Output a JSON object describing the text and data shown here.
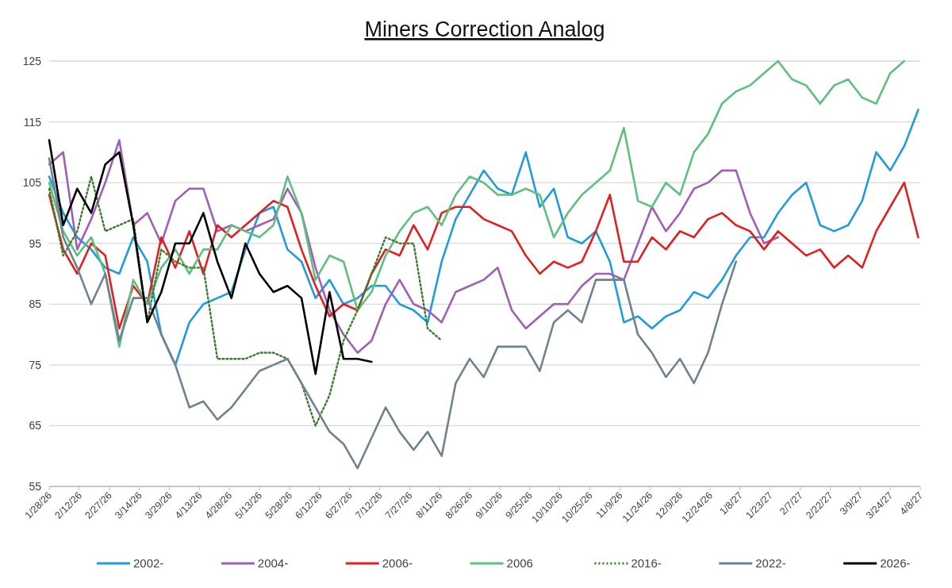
{
  "chart_data": {
    "type": "line",
    "title": "Miners Correction Analog",
    "x": [
      "2026-01-28",
      "2026-02-04",
      "2026-02-11",
      "2026-02-18",
      "2026-02-25",
      "2026-03-04",
      "2026-03-11",
      "2026-03-18",
      "2026-03-25",
      "2026-04-01",
      "2026-04-08",
      "2026-04-15",
      "2026-04-22",
      "2026-04-29",
      "2026-05-06",
      "2026-05-13",
      "2026-05-20",
      "2026-05-27",
      "2026-06-03",
      "2026-06-10",
      "2026-06-17",
      "2026-06-24",
      "2026-07-01",
      "2026-07-08",
      "2026-07-15",
      "2026-07-22",
      "2026-07-29",
      "2026-08-05",
      "2026-08-12",
      "2026-08-19",
      "2026-08-26",
      "2026-09-02",
      "2026-09-09",
      "2026-09-16",
      "2026-09-23",
      "2026-09-30",
      "2026-10-07",
      "2026-10-14",
      "2026-10-21",
      "2026-10-28",
      "2026-11-04",
      "2026-11-11",
      "2026-11-18",
      "2026-11-25",
      "2026-12-02",
      "2026-12-09",
      "2026-12-16",
      "2026-12-23",
      "2026-12-30",
      "2027-01-06",
      "2027-01-13",
      "2027-01-20",
      "2027-01-27",
      "2027-02-03",
      "2027-02-10",
      "2027-02-17",
      "2027-02-24",
      "2027-03-03",
      "2027-03-10",
      "2027-03-17",
      "2027-03-24",
      "2027-03-31",
      "2027-04-07"
    ],
    "series": [
      {
        "name": "2002-",
        "color": "#1f9bde",
        "values": [
          106,
          100,
          96,
          94,
          91,
          90,
          96,
          92,
          80,
          75,
          82,
          85,
          86,
          87,
          94,
          100,
          101,
          94,
          92,
          86,
          89,
          85,
          86,
          88,
          88,
          85,
          84,
          82,
          92,
          99,
          103,
          107,
          104,
          103,
          110,
          101,
          104,
          96,
          95,
          97,
          92,
          82,
          83,
          81,
          83,
          84,
          87,
          86,
          89,
          93,
          96,
          96,
          100,
          103,
          105,
          98,
          97,
          98,
          102,
          110,
          107,
          111,
          117
        ]
      },
      {
        "name": "2004-",
        "color": "#a05fb5",
        "values": [
          108,
          110,
          94,
          99,
          105,
          112,
          98,
          100,
          95,
          102,
          104,
          104,
          97,
          98,
          97,
          98,
          99,
          104,
          100,
          91,
          84,
          80,
          77,
          79,
          85,
          89,
          85,
          84,
          82,
          87,
          88,
          89,
          91,
          84,
          81,
          83,
          85,
          85,
          88,
          90,
          90,
          89,
          95,
          101,
          97,
          100,
          104,
          105,
          107,
          107,
          100,
          95,
          96,
          null,
          null,
          null,
          null,
          null,
          null,
          null,
          null,
          null,
          null
        ]
      },
      {
        "name": "2006-",
        "color": "#e02020",
        "values": [
          103,
          94,
          90,
          95,
          93,
          81,
          88,
          85,
          96,
          91,
          97,
          90,
          98,
          96,
          98,
          100,
          102,
          101,
          94,
          88,
          83,
          85,
          84,
          90,
          94,
          93,
          98,
          94,
          100,
          101,
          101,
          99,
          98,
          97,
          93,
          90,
          92,
          91,
          92,
          97,
          103,
          92,
          92,
          96,
          94,
          97,
          96,
          99,
          100,
          98,
          97,
          94,
          97,
          95,
          93,
          94,
          91,
          93,
          91,
          97,
          101,
          105,
          96
        ]
      },
      {
        "name": "2006",
        "color": "#5fbf7f",
        "values": [
          105,
          97,
          93,
          96,
          90,
          78,
          89,
          85,
          91,
          94,
          90,
          94,
          94,
          98,
          97,
          96,
          98,
          106,
          100,
          89,
          93,
          92,
          84,
          87,
          93,
          97,
          100,
          101,
          98,
          103,
          106,
          105,
          103,
          103,
          104,
          103,
          96,
          100,
          103,
          105,
          107,
          114,
          102,
          101,
          105,
          103,
          110,
          113,
          118,
          120,
          121,
          123,
          125,
          122,
          121,
          118,
          121,
          122,
          119,
          118,
          123,
          125,
          null
        ]
      },
      {
        "name": "2016-",
        "color": "#3a7d2c",
        "line_style": "dotted",
        "values": [
          104,
          93,
          97,
          106,
          97,
          98,
          99,
          82,
          94,
          92,
          91,
          91,
          76,
          76,
          76,
          77,
          77,
          76,
          72,
          65,
          70,
          79,
          84,
          90,
          96,
          95,
          95,
          81,
          79,
          null,
          null,
          null,
          null,
          null,
          null,
          null,
          null,
          null,
          null,
          null,
          null,
          null,
          null,
          null,
          null,
          null,
          null,
          null,
          null,
          null,
          null,
          null,
          null,
          null,
          null,
          null,
          null,
          null,
          null,
          null,
          null,
          null,
          null
        ]
      },
      {
        "name": "2022-",
        "color": "#6e8290",
        "values": [
          109,
          96,
          91,
          85,
          90,
          79,
          86,
          86,
          80,
          75,
          68,
          69,
          66,
          68,
          71,
          74,
          75,
          76,
          72,
          68,
          64,
          62,
          58,
          63,
          68,
          64,
          61,
          64,
          60,
          72,
          76,
          73,
          78,
          78,
          78,
          74,
          82,
          84,
          82,
          89,
          89,
          89,
          80,
          77,
          73,
          76,
          72,
          77,
          85,
          92,
          null,
          null,
          null,
          null,
          null,
          null,
          null,
          null,
          null,
          null,
          null,
          null,
          null
        ]
      },
      {
        "name": "2026-",
        "color": "#000000",
        "values": [
          112,
          98,
          104,
          100,
          108,
          110,
          98,
          82,
          87,
          95,
          95,
          100,
          92,
          86,
          95,
          90,
          87,
          88,
          86,
          73.5,
          87,
          76,
          76,
          75.5,
          null,
          null,
          null,
          null,
          null,
          null,
          null,
          null,
          null,
          null,
          null,
          null,
          null,
          null,
          null,
          null,
          null,
          null,
          null,
          null,
          null,
          null,
          null,
          null,
          null,
          null,
          null,
          null,
          null,
          null,
          null,
          null,
          null,
          null,
          null,
          null,
          null,
          null,
          null
        ]
      }
    ],
    "xlim": [
      "2026-01-28",
      "2027-04-08"
    ],
    "xticks": [
      {
        "value": "2026-01-28",
        "label": "1/28/26"
      },
      {
        "value": "2026-02-12",
        "label": "2/12/26"
      },
      {
        "value": "2026-02-27",
        "label": "2/27/26"
      },
      {
        "value": "2026-03-14",
        "label": "3/14/26"
      },
      {
        "value": "2026-03-29",
        "label": "3/29/26"
      },
      {
        "value": "2026-04-13",
        "label": "4/13/26"
      },
      {
        "value": "2026-04-28",
        "label": "4/28/26"
      },
      {
        "value": "2026-05-13",
        "label": "5/13/26"
      },
      {
        "value": "2026-05-28",
        "label": "5/28/26"
      },
      {
        "value": "2026-06-12",
        "label": "6/12/26"
      },
      {
        "value": "2026-06-27",
        "label": "6/27/26"
      },
      {
        "value": "2026-07-12",
        "label": "7/12/26"
      },
      {
        "value": "2026-07-27",
        "label": "7/27/26"
      },
      {
        "value": "2026-08-11",
        "label": "8/11/26"
      },
      {
        "value": "2026-08-26",
        "label": "8/26/26"
      },
      {
        "value": "2026-09-10",
        "label": "9/10/26"
      },
      {
        "value": "2026-09-25",
        "label": "9/25/26"
      },
      {
        "value": "2026-10-10",
        "label": "10/10/26"
      },
      {
        "value": "2026-10-25",
        "label": "10/25/26"
      },
      {
        "value": "2026-11-09",
        "label": "11/9/26"
      },
      {
        "value": "2026-11-24",
        "label": "11/24/26"
      },
      {
        "value": "2026-12-09",
        "label": "12/9/26"
      },
      {
        "value": "2026-12-24",
        "label": "12/24/26"
      },
      {
        "value": "2027-01-08",
        "label": "1/8/27"
      },
      {
        "value": "2027-01-23",
        "label": "1/23/27"
      },
      {
        "value": "2027-02-07",
        "label": "2/7/27"
      },
      {
        "value": "2027-02-22",
        "label": "2/22/27"
      },
      {
        "value": "2027-03-09",
        "label": "3/9/27"
      },
      {
        "value": "2027-03-24",
        "label": "3/24/27"
      },
      {
        "value": "2027-04-08",
        "label": "4/8/27"
      }
    ],
    "ylim": [
      55,
      125
    ],
    "yticks": [
      55,
      65,
      75,
      85,
      95,
      105,
      115,
      125
    ],
    "grid": "y",
    "legend": "bottom",
    "line_style": "solid",
    "marker": "none"
  }
}
